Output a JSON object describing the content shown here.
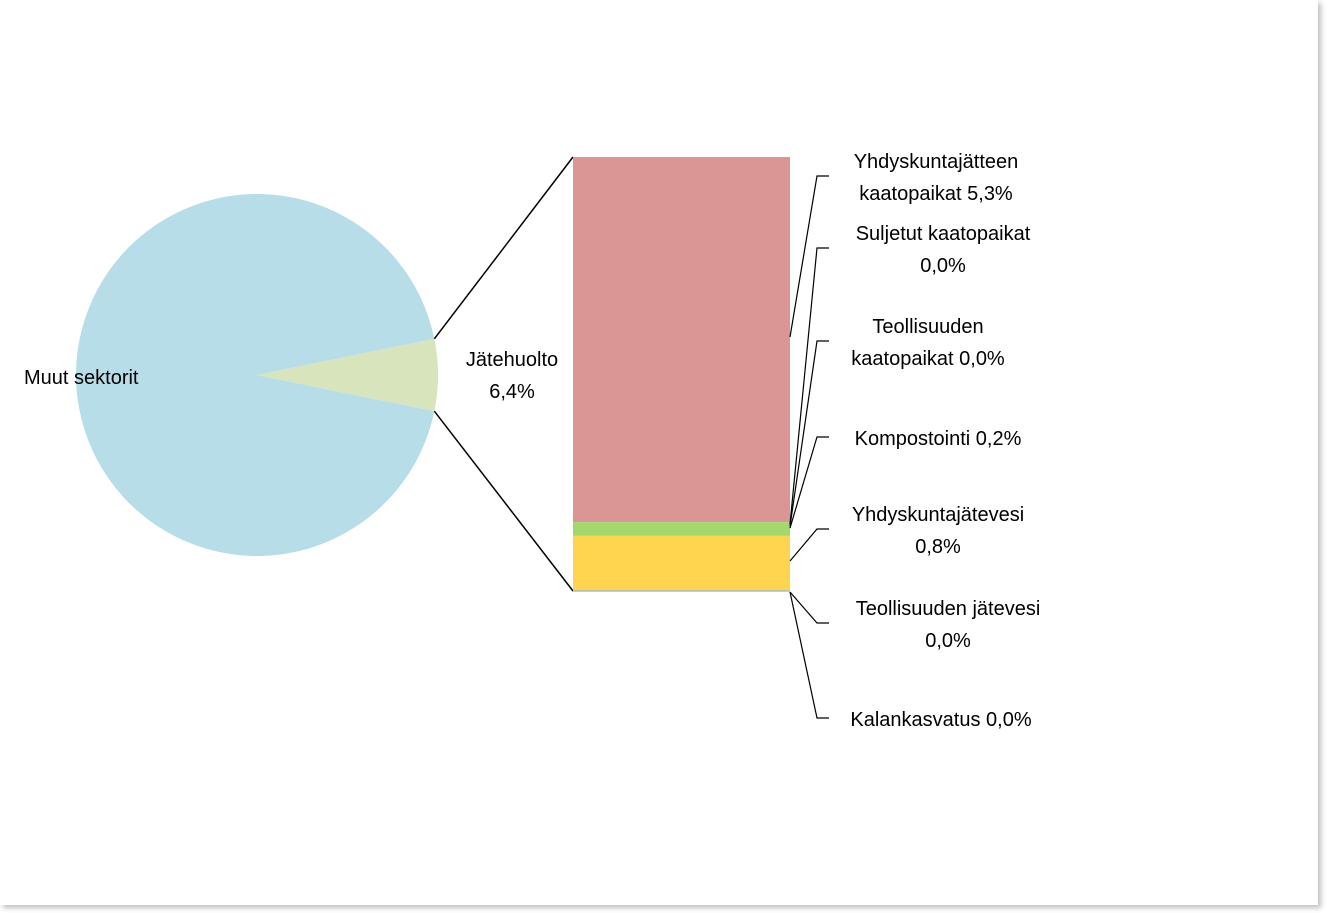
{
  "chart_data": {
    "type": "pie",
    "subtype": "bar-of-pie",
    "pie": {
      "slices": [
        {
          "label": "Muut sektorit",
          "value": 93.6,
          "color": "#b7dde8",
          "label_text": "Muut sektorit"
        },
        {
          "label": "Jätehuolto",
          "value": 6.4,
          "color": "#d8e4bc",
          "label_text": [
            "Jätehuolto",
            "6,4%"
          ]
        }
      ]
    },
    "bar": {
      "segments": [
        {
          "label": "Yhdyskuntajätteen kaatopaikat",
          "value": 5.3,
          "color": "#d99694",
          "label_text": [
            "Yhdyskuntajätteen",
            "kaatopaikat 5,3%"
          ]
        },
        {
          "label": "Suljetut kaatopaikat",
          "value": 0.0,
          "color": "#b9cde5",
          "label_text": [
            "Suljetut kaatopaikat",
            "0,0%"
          ]
        },
        {
          "label": "Teollisuuden kaatopaikat",
          "value": 0.0,
          "color": "#c3d69b",
          "label_text": [
            "Teollisuuden",
            "kaatopaikat 0,0%"
          ]
        },
        {
          "label": "Kompostointi",
          "value": 0.2,
          "color": "#a3d86d",
          "label_text": [
            "Kompostointi 0,2%"
          ]
        },
        {
          "label": "Yhdyskuntajätevesi",
          "value": 0.8,
          "color": "#ffd54f",
          "label_text": [
            "Yhdyskuntajätevesi",
            "0,8%"
          ]
        },
        {
          "label": "Teollisuuden jätevesi",
          "value": 0.0,
          "color": "#8db3e2",
          "label_text": [
            "Teollisuuden jätevesi",
            "0,0%"
          ]
        },
        {
          "label": "Kalankasvatus",
          "value": 0.0,
          "color": "#4bacc6",
          "label_text": [
            "Kalankasvatus 0,0%"
          ]
        }
      ]
    },
    "title": "",
    "legend": "none"
  }
}
